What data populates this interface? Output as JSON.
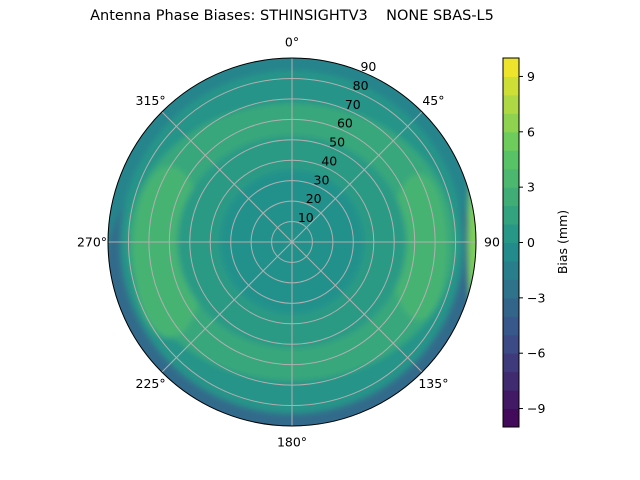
{
  "chart_data": {
    "type": "contour",
    "projection": "polar",
    "title": "Antenna Phase Biases: STHINSIGHTV3    NONE SBAS-L5",
    "theta_zero": "N",
    "theta_direction": "clockwise",
    "theta_ticks": [
      "0°",
      "45°",
      "90",
      "135°",
      "180°",
      "225°",
      "270°",
      "315°"
    ],
    "theta_tick_values": [
      0,
      45,
      90,
      135,
      180,
      225,
      270,
      315
    ],
    "r_range": [
      0,
      90
    ],
    "r_ticks": [
      "10",
      "20",
      "30",
      "40",
      "50",
      "60",
      "70",
      "80",
      "90"
    ],
    "r_tick_values": [
      10,
      20,
      30,
      40,
      50,
      60,
      70,
      80,
      90
    ],
    "grid": true,
    "colormap": "viridis",
    "colorbar": {
      "label": "Bias (mm)",
      "range": [
        -10,
        10
      ],
      "levels_step": 1,
      "ticks": [
        "−9",
        "−6",
        "−3",
        "0",
        "3",
        "6",
        "9"
      ],
      "tick_values": [
        -9,
        -6,
        -3,
        0,
        3,
        6,
        9
      ]
    },
    "field_description_values": {
      "center_r_0_35": 0,
      "ring_r_40_75": 2,
      "lobes_east_west_r_60_80": 3,
      "rim_south_r_80_90": -3,
      "rim_north_r_80_90": -1,
      "rim_east_edge_r_88_90": 6
    }
  }
}
